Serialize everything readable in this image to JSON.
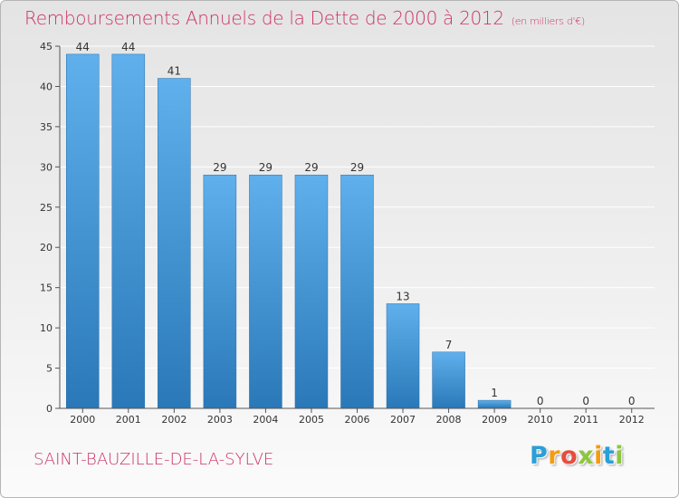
{
  "header": {
    "title": "Remboursements Annuels de la Dette de 2000 à 2012",
    "unit": "(en milliers d'€)"
  },
  "footer": {
    "commune": "SAINT-BAUZILLE-DE-LA-SYLVE",
    "logo_letters": [
      "P",
      "r",
      "o",
      "x",
      "i",
      "t",
      "i"
    ],
    "logo_colors": [
      "#2a9fd8",
      "#f39c12",
      "#e84c3d",
      "#8dc63f",
      "#f39c12",
      "#2a9fd8",
      "#8dc63f"
    ]
  },
  "colors": {
    "title": "#cc3366",
    "bar_light": "#5fb0ec",
    "bar_dark": "#2a78b8",
    "grid": "#ffffff",
    "axis": "#555555",
    "text": "#333333"
  },
  "chart_data": {
    "type": "bar",
    "categories": [
      "2000",
      "2001",
      "2002",
      "2003",
      "2004",
      "2005",
      "2006",
      "2007",
      "2008",
      "2009",
      "2010",
      "2011",
      "2012"
    ],
    "values": [
      44,
      44,
      41,
      29,
      29,
      29,
      29,
      13,
      7,
      1,
      0,
      0,
      0
    ],
    "title": "Remboursements Annuels de la Dette de 2000 à 2012",
    "subtitle": "(en milliers d'€)",
    "xlabel": "",
    "ylabel": "",
    "ylim": [
      0,
      45
    ],
    "yticks": [
      0,
      5,
      10,
      15,
      20,
      25,
      30,
      35,
      40,
      45
    ],
    "grid": true,
    "legend": "none",
    "data_labels": true
  }
}
